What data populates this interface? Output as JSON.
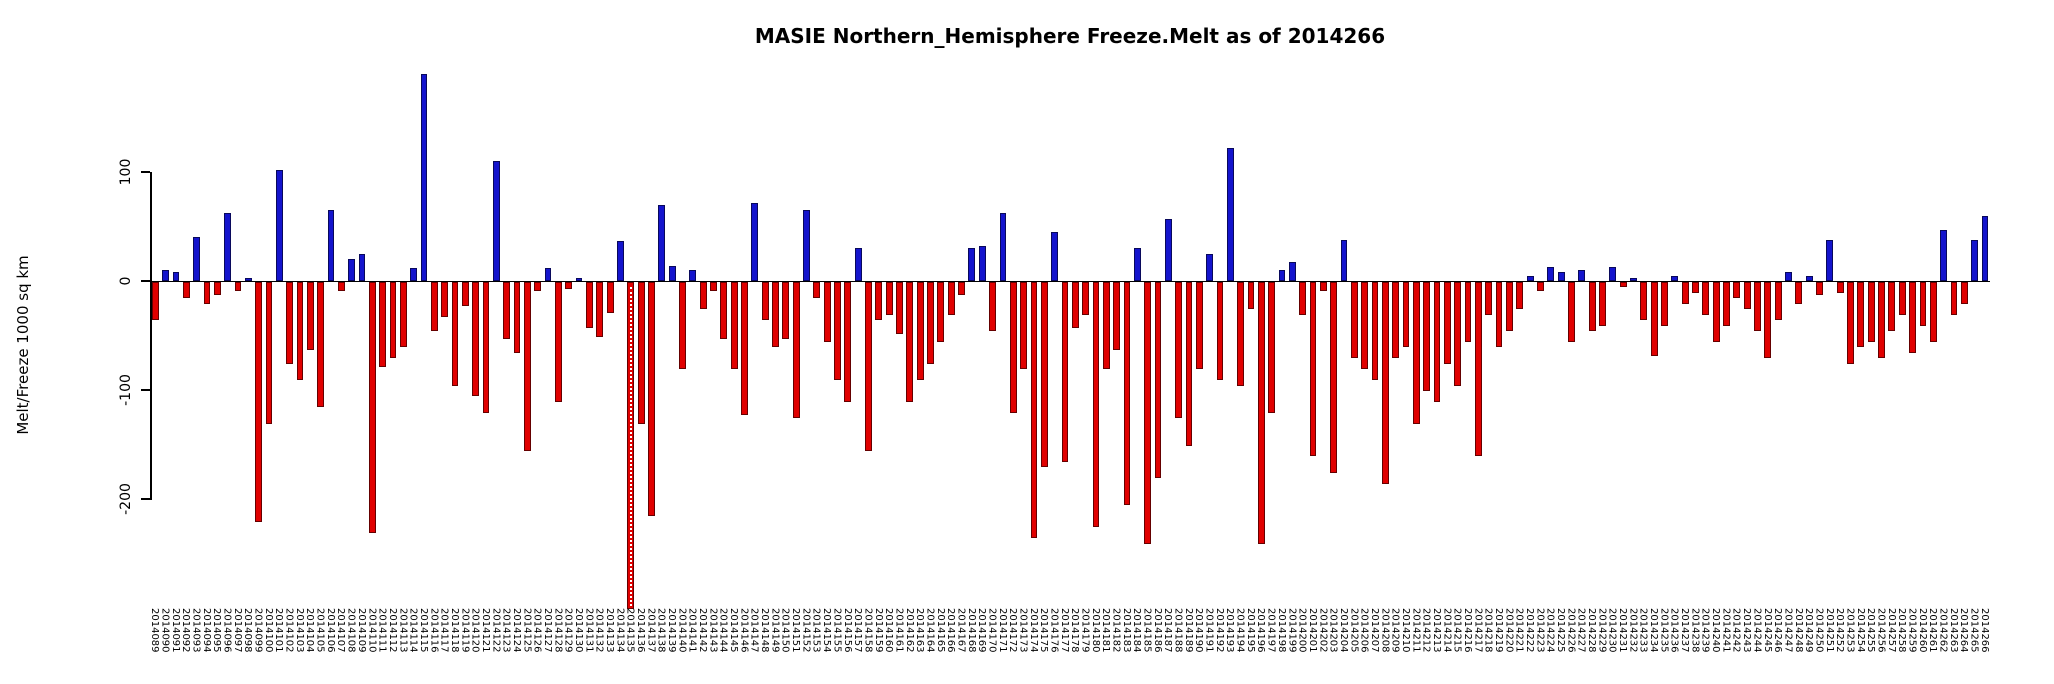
{
  "title": "MASIE Northern_Hemisphere Freeze.Melt as of 2014266",
  "y_axis": {
    "label": "Melt/Freeze 1000 sq km",
    "ticks": [
      100,
      0,
      -100,
      -200
    ]
  },
  "chart_data": {
    "type": "bar",
    "title": "MASIE Northern_Hemisphere Freeze.Melt as of 2014266",
    "xlabel": "",
    "ylabel": "Melt/Freeze 1000 sq km",
    "ylim": [
      -310,
      200
    ],
    "yticks": [
      100,
      0,
      -100,
      -200
    ],
    "grid": false,
    "legend": "none",
    "colors": {
      "positive": "#1414cd",
      "negative": "#e00000"
    },
    "categories": [
      "2014089",
      "2014090",
      "2014091",
      "2014092",
      "2014093",
      "2014094",
      "2014095",
      "2014096",
      "2014097",
      "2014098",
      "2014099",
      "2014100",
      "2014101",
      "2014102",
      "2014103",
      "2014104",
      "2014105",
      "2014106",
      "2014107",
      "2014108",
      "2014109",
      "2014110",
      "2014111",
      "2014112",
      "2014113",
      "2014114",
      "2014115",
      "2014116",
      "2014117",
      "2014118",
      "2014119",
      "2014120",
      "2014121",
      "2014122",
      "2014123",
      "2014124",
      "2014125",
      "2014126",
      "2014127",
      "2014128",
      "2014129",
      "2014130",
      "2014131",
      "2014132",
      "2014133",
      "2014134",
      "2014135",
      "2014136",
      "2014137",
      "2014138",
      "2014139",
      "2014140",
      "2014141",
      "2014142",
      "2014143",
      "2014144",
      "2014145",
      "2014146",
      "2014147",
      "2014148",
      "2014149",
      "2014150",
      "2014151",
      "2014152",
      "2014153",
      "2014154",
      "2014155",
      "2014156",
      "2014157",
      "2014158",
      "2014159",
      "2014160",
      "2014161",
      "2014162",
      "2014163",
      "2014164",
      "2014165",
      "2014166",
      "2014167",
      "2014168",
      "2014169",
      "2014170",
      "2014171",
      "2014172",
      "2014173",
      "2014174",
      "2014175",
      "2014176",
      "2014177",
      "2014178",
      "2014179",
      "2014180",
      "2014181",
      "2014182",
      "2014183",
      "2014184",
      "2014185",
      "2014186",
      "2014187",
      "2014188",
      "2014189",
      "2014190",
      "2014191",
      "2014192",
      "2014193",
      "2014194",
      "2014195",
      "2014196",
      "2014197",
      "2014198",
      "2014199",
      "2014200",
      "2014201",
      "2014202",
      "2014203",
      "2014204",
      "2014205",
      "2014206",
      "2014207",
      "2014208",
      "2014209",
      "2014210",
      "2014211",
      "2014212",
      "2014213",
      "2014214",
      "2014215",
      "2014216",
      "2014217",
      "2014218",
      "2014219",
      "2014220",
      "2014221",
      "2014222",
      "2014223",
      "2014224",
      "2014225",
      "2014226",
      "2014227",
      "2014228",
      "2014229",
      "2014230",
      "2014231",
      "2014232",
      "2014233",
      "2014234",
      "2014235",
      "2014236",
      "2014237",
      "2014238",
      "2014239",
      "2014240",
      "2014241",
      "2014242",
      "2014243",
      "2014244",
      "2014245",
      "2014246",
      "2014247",
      "2014248",
      "2014249",
      "2014250",
      "2014251",
      "2014252",
      "2014253",
      "2014254",
      "2014255",
      "2014256",
      "2014257",
      "2014258",
      "2014259",
      "2014260",
      "2014261",
      "2014262",
      "2014263",
      "2014264",
      "2014265",
      "2014266"
    ],
    "values": [
      -35,
      10,
      8,
      -15,
      40,
      -20,
      -12,
      62,
      -8,
      3,
      -220,
      -130,
      102,
      -75,
      -90,
      -62,
      -115,
      65,
      -8,
      20,
      25,
      -230,
      -78,
      -70,
      -60,
      12,
      190,
      -45,
      -32,
      -95,
      -22,
      -105,
      -120,
      110,
      -52,
      -65,
      -155,
      -8,
      12,
      -110,
      -6,
      3,
      -42,
      -50,
      -28,
      37,
      -300,
      -130,
      -215,
      70,
      14,
      -80,
      10,
      -25,
      -8,
      -52,
      -80,
      -122,
      72,
      -35,
      -60,
      -52,
      -125,
      65,
      -15,
      -55,
      -90,
      -110,
      30,
      -155,
      -35,
      -30,
      -48,
      -110,
      -90,
      -75,
      -55,
      -30,
      -12,
      30,
      32,
      -45,
      62,
      -120,
      -80,
      -235,
      -170,
      45,
      -165,
      -42,
      -30,
      -225,
      -80,
      -62,
      -205,
      30,
      -240,
      -180,
      57,
      -125,
      -150,
      -80,
      25,
      -90,
      122,
      -95,
      -25,
      -240,
      -120,
      10,
      17,
      -30,
      -160,
      -8,
      -175,
      38,
      -70,
      -80,
      -90,
      -185,
      -70,
      -60,
      -130,
      -100,
      -110,
      -75,
      -95,
      -55,
      -160,
      -30,
      -60,
      -45,
      -25,
      5,
      -8,
      13,
      8,
      -55,
      10,
      -45,
      -40,
      13,
      -5,
      3,
      -35,
      -68,
      -40,
      5,
      -20,
      -10,
      -30,
      -55,
      -40,
      -15,
      -25,
      -45,
      -70,
      -35,
      8,
      -20,
      5,
      -12,
      38,
      -10,
      -75,
      -60,
      -55,
      -70,
      -45,
      -30,
      -65,
      -40,
      -55,
      47,
      -30,
      -20,
      38,
      60
    ]
  }
}
